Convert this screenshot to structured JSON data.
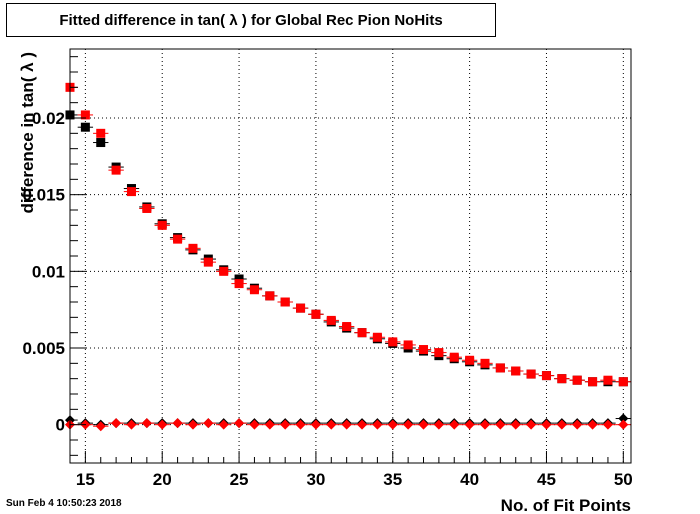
{
  "timestamp": "Sun Feb  4 10:50:23 2018",
  "chart_data": {
    "type": "scatter",
    "title": "Fitted difference in tan( λ ) for Global Rec Pion NoHits",
    "xlabel": "No. of Fit Points",
    "ylabel": "difference in tan( λ )",
    "xlim": [
      14,
      50.5
    ],
    "ylim": [
      -0.0025,
      0.0245
    ],
    "grid": true,
    "xticks": [
      15,
      20,
      25,
      30,
      35,
      40,
      45,
      50
    ],
    "yticks": [
      0,
      0.005,
      0.01,
      0.015,
      0.02
    ],
    "ytick_labels": [
      "0",
      "0.005",
      "0.01",
      "0.015",
      "0.02"
    ],
    "x": [
      14,
      15,
      16,
      17,
      18,
      19,
      20,
      21,
      22,
      23,
      24,
      25,
      26,
      27,
      28,
      29,
      30,
      31,
      32,
      33,
      34,
      35,
      36,
      37,
      38,
      39,
      40,
      41,
      42,
      43,
      44,
      45,
      46,
      47,
      48,
      49,
      50
    ],
    "series": [
      {
        "color": "#000000",
        "marker": "square",
        "values": [
          0.0202,
          0.0194,
          0.0184,
          0.0168,
          0.0154,
          0.0142,
          0.0131,
          0.0122,
          0.0114,
          0.0108,
          0.0101,
          0.0095,
          0.0089,
          0.0084,
          0.008,
          0.0076,
          0.0072,
          0.0067,
          0.0063,
          0.006,
          0.0056,
          0.0053,
          0.005,
          0.0048,
          0.0045,
          0.0043,
          0.0041,
          0.0039,
          0.0037,
          0.0035,
          0.0033,
          0.0032,
          0.003,
          0.0029,
          0.0028,
          0.0028,
          0.0028
        ]
      },
      {
        "color": "#ff0000",
        "marker": "square",
        "values": [
          0.022,
          0.0202,
          0.019,
          0.0166,
          0.0152,
          0.0141,
          0.013,
          0.0121,
          0.0115,
          0.0106,
          0.01,
          0.0092,
          0.0088,
          0.0084,
          0.008,
          0.0076,
          0.0072,
          0.0068,
          0.0064,
          0.006,
          0.0057,
          0.0054,
          0.0052,
          0.0049,
          0.0047,
          0.0044,
          0.0042,
          0.004,
          0.0037,
          0.0035,
          0.0033,
          0.0032,
          0.003,
          0.0029,
          0.0028,
          0.0029,
          0.0028
        ]
      },
      {
        "color": "#000000",
        "marker": "diamond",
        "values": [
          0.0003,
          0.0001,
          0.0,
          0.0001,
          0.0001,
          0.0001,
          0.0001,
          0.0001,
          0.0001,
          0.0001,
          0.0001,
          0.0001,
          0.0001,
          0.0001,
          0.0001,
          0.0001,
          0.0001,
          0.0001,
          0.0001,
          0.0001,
          0.0001,
          0.0001,
          0.0001,
          0.0001,
          0.0001,
          0.0001,
          0.0001,
          0.0001,
          0.0001,
          0.0001,
          0.0001,
          0.0001,
          0.0001,
          0.0001,
          0.0001,
          0.0001,
          0.0004
        ]
      },
      {
        "color": "#ff0000",
        "marker": "diamond",
        "values": [
          0.0,
          0.0,
          -0.0001,
          0.0001,
          0.0,
          0.0001,
          0.0,
          0.0001,
          0.0,
          0.0001,
          0.0,
          0.0001,
          0.0,
          0.0,
          0.0,
          0.0,
          0.0,
          0.0,
          0.0,
          0.0,
          0.0,
          0.0,
          0.0,
          0.0,
          0.0,
          0.0,
          0.0,
          0.0,
          0.0,
          0.0,
          0.0,
          0.0,
          0.0,
          0.0,
          0.0,
          0.0,
          0.0
        ]
      }
    ]
  }
}
